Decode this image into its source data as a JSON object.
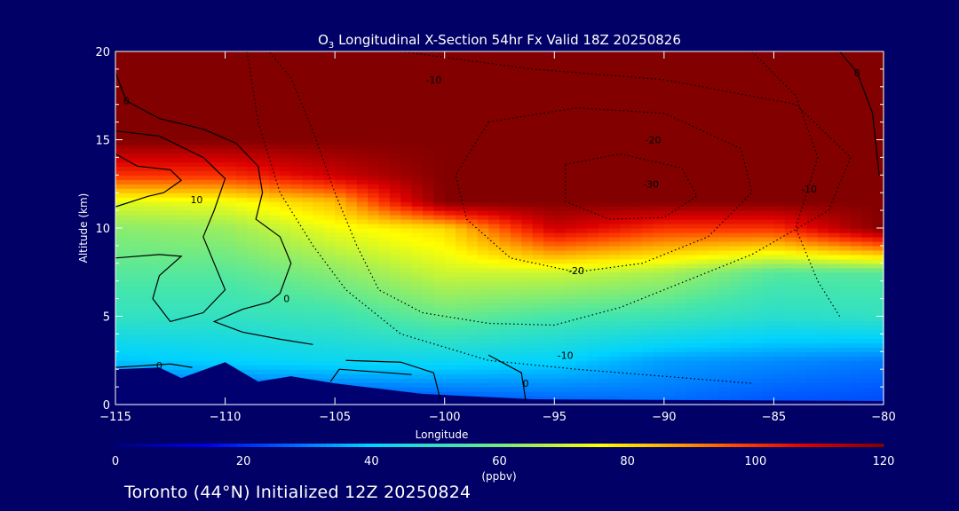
{
  "chart_data": {
    "type": "heatmap",
    "title_prefix": "O",
    "title_subscript": "3",
    "title_rest": " Longitudinal X-Section 54hr  Fx Valid 18Z 20250826",
    "xlabel": "Longitude",
    "ylabel": "Altitude (km)",
    "xlim": [
      -115,
      -80
    ],
    "ylim": [
      0,
      20
    ],
    "x_ticks": [
      -115,
      -110,
      -105,
      -100,
      -95,
      -90,
      -85,
      -80
    ],
    "x_tick_labels": [
      "−115",
      "−110",
      "−105",
      "−100",
      "−95",
      "−90",
      "−85",
      "−80"
    ],
    "y_ticks": [
      0,
      5,
      10,
      15,
      20
    ],
    "y_tick_labels": [
      "0",
      "5",
      "10",
      "15",
      "20"
    ],
    "colorbar": {
      "label": "(ppbv)",
      "range": [
        0,
        120
      ],
      "ticks": [
        0,
        20,
        40,
        60,
        80,
        100,
        120
      ],
      "tick_labels": [
        "0",
        "20",
        "40",
        "60",
        "80",
        "100",
        "120"
      ]
    },
    "fields": {
      "lon": [
        -115,
        -110,
        -105,
        -100,
        -95,
        -90,
        -85,
        -80
      ],
      "alt": [
        0,
        2.5,
        5,
        7.5,
        10,
        11.5,
        13,
        15,
        20
      ],
      "ozone_ppbv": [
        [
          22,
          22,
          22,
          24,
          26,
          28,
          25,
          24
        ],
        [
          38,
          40,
          42,
          42,
          40,
          34,
          32,
          30
        ],
        [
          50,
          50,
          52,
          58,
          54,
          52,
          48,
          50
        ],
        [
          56,
          56,
          62,
          70,
          70,
          66,
          56,
          56
        ],
        [
          62,
          64,
          74,
          80,
          110,
          100,
          100,
          120
        ],
        [
          72,
          74,
          84,
          120,
          120,
          120,
          120,
          120
        ],
        [
          100,
          100,
          110,
          120,
          120,
          120,
          120,
          120
        ],
        [
          120,
          120,
          120,
          120,
          120,
          120,
          120,
          120
        ],
        [
          120,
          120,
          120,
          120,
          120,
          120,
          120,
          120
        ]
      ]
    },
    "terrain": [
      [
        -115,
        2
      ],
      [
        -113,
        2.1
      ],
      [
        -112,
        1.5
      ],
      [
        -110,
        2.4
      ],
      [
        -108.5,
        1.3
      ],
      [
        -107,
        1.6
      ],
      [
        -105,
        1.2
      ],
      [
        -101,
        0.6
      ],
      [
        -96,
        0.3
      ],
      [
        -80,
        0.2
      ]
    ],
    "contour_labels": [
      {
        "text": "-10",
        "lon": -100.5,
        "alt": 18.4
      },
      {
        "text": "-20",
        "lon": -90.5,
        "alt": 15.0
      },
      {
        "text": "-30",
        "lon": -90.6,
        "alt": 12.5
      },
      {
        "text": "-20",
        "lon": -94.0,
        "alt": 7.6
      },
      {
        "text": "-10",
        "lon": -94.5,
        "alt": 2.8
      },
      {
        "text": "-10",
        "lon": -83.4,
        "alt": 12.2
      },
      {
        "text": "0",
        "lon": -114.5,
        "alt": 17.2
      },
      {
        "text": "10",
        "lon": -111.3,
        "alt": 11.6
      },
      {
        "text": "0",
        "lon": -107.2,
        "alt": 6.0
      },
      {
        "text": "0",
        "lon": -113.0,
        "alt": 2.2
      },
      {
        "text": "0",
        "lon": -96.3,
        "alt": 1.2
      },
      {
        "text": "0",
        "lon": -81.2,
        "alt": 18.8
      }
    ]
  },
  "footer": "Toronto (44°N) Initialized 12Z 20250824"
}
